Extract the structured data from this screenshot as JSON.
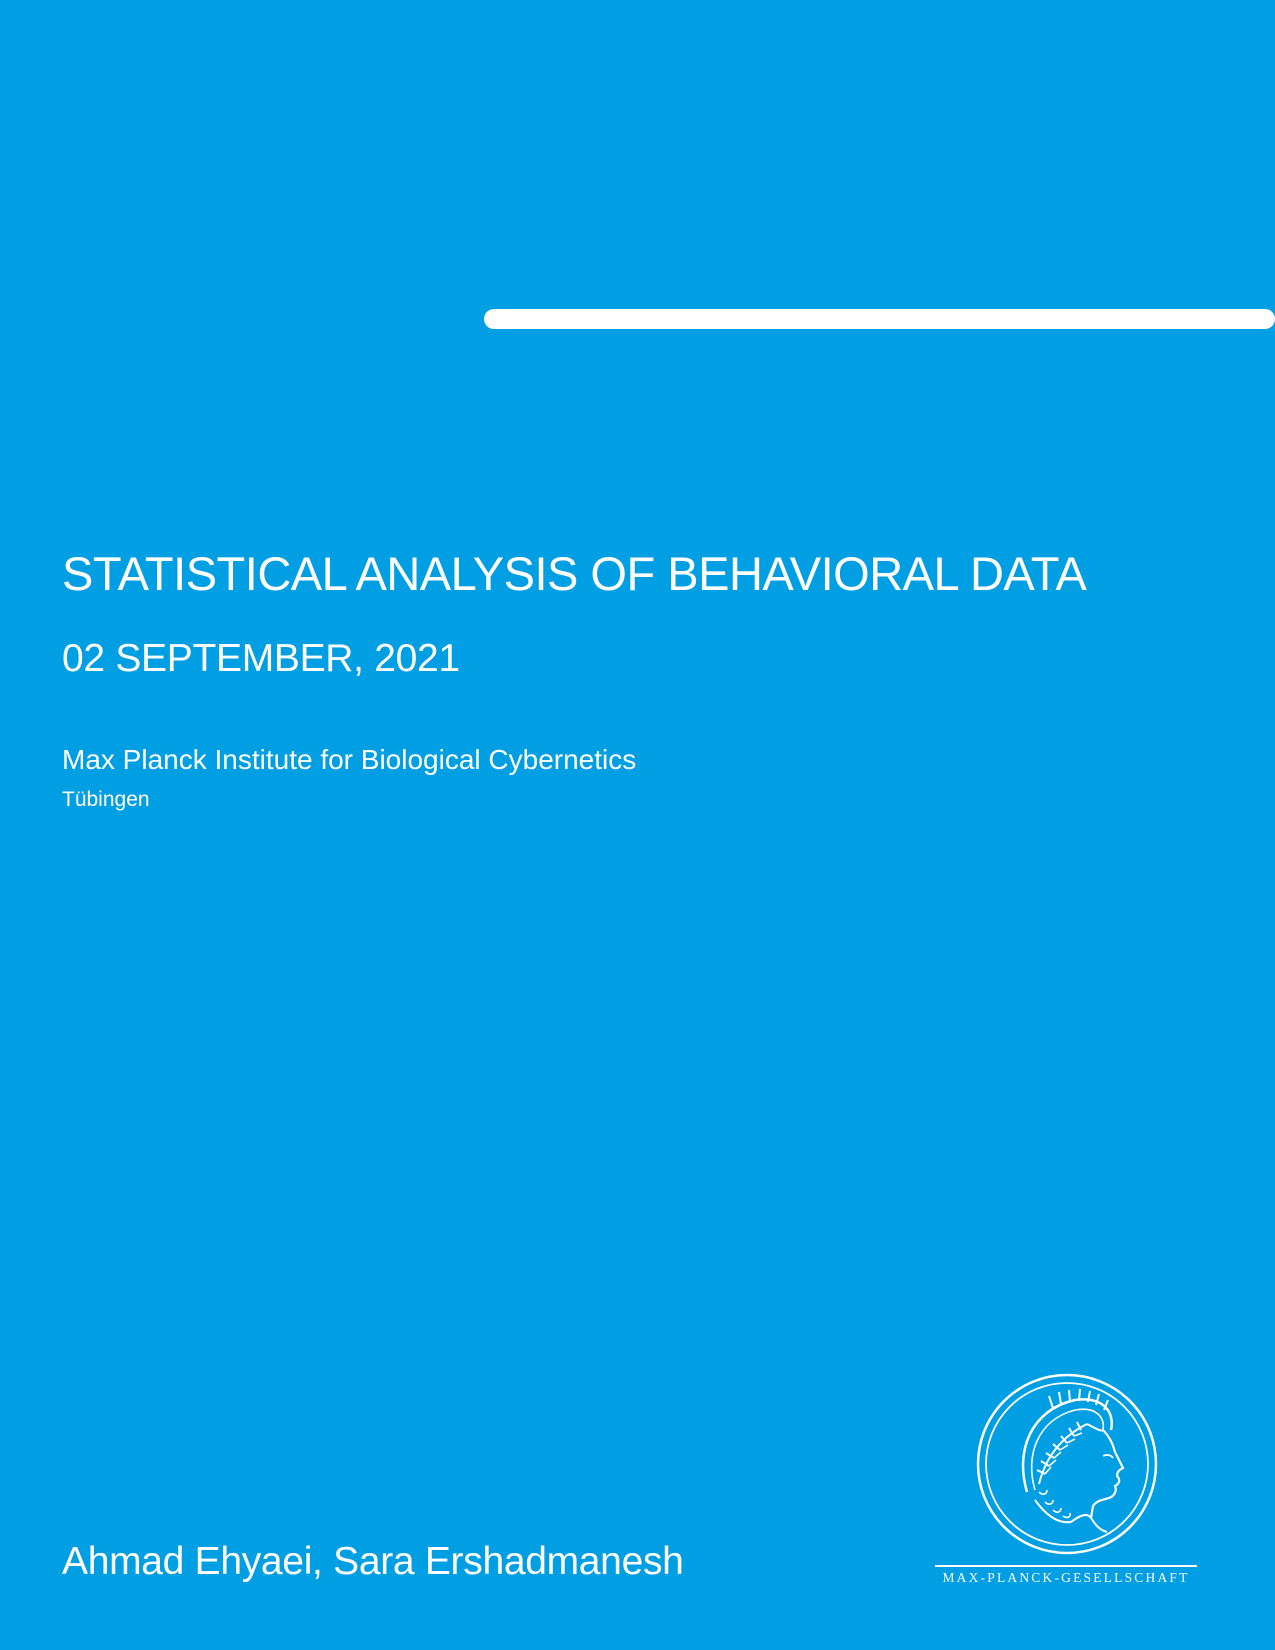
{
  "cover": {
    "title": "STATISTICAL ANALYSIS OF BEHAVIORAL DATA",
    "date": "02 SEPTEMBER, 2021",
    "institute": "Max Planck Institute for Biological Cybernetics",
    "city": "Tübingen",
    "authors": "Ahmad Ehyaei, Sara Ershadmanesh"
  },
  "logo": {
    "text": "MAX-PLANCK-GESELLSCHAFT",
    "icon": "minerva-head-icon"
  },
  "colors": {
    "background": "#009fe3",
    "foreground": "#ffffff"
  }
}
